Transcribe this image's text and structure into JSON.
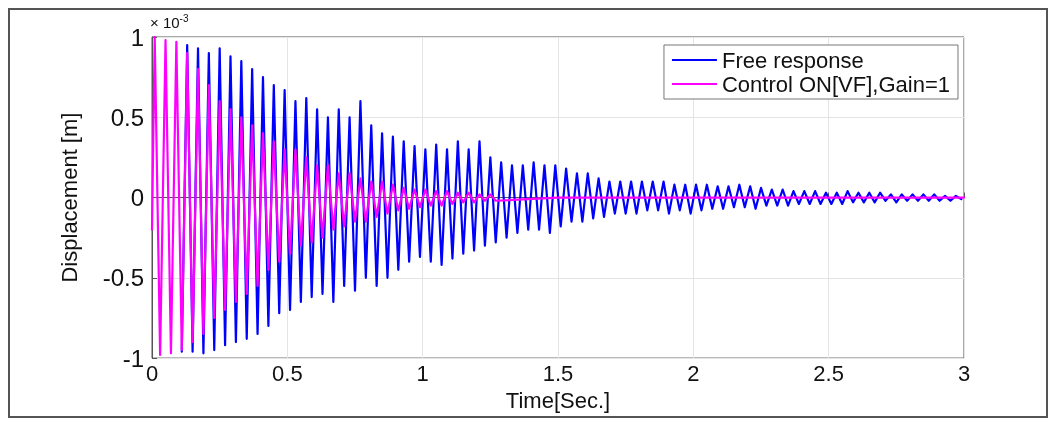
{
  "chart_data": {
    "type": "line",
    "xlabel": "Time[Sec.]",
    "ylabel": "Displacement [m]",
    "annotations": [
      "× 10$^{-3}$"
    ],
    "xlim": [
      0,
      3
    ],
    "ylim": [
      -1,
      1
    ],
    "xticks": [
      0,
      0.5,
      1,
      1.5,
      2,
      2.5,
      3
    ],
    "yticks": [
      -1,
      -0.5,
      0,
      0.5,
      1
    ],
    "grid": true,
    "legend": "top right",
    "marker": "none",
    "line_style": "solid",
    "series": [
      {
        "name": "Free response",
        "color": "#0000ff",
        "x": [
          0.11,
          0.13,
          0.15,
          0.17,
          0.19,
          0.21,
          0.23,
          0.25,
          0.27,
          0.29,
          0.31,
          0.33,
          0.35,
          0.37,
          0.39,
          0.41,
          0.43,
          0.45,
          0.47,
          0.49,
          0.51,
          0.53,
          0.55,
          0.57,
          0.59,
          0.61,
          0.63,
          0.65,
          0.67,
          0.69,
          0.71,
          0.73,
          0.75,
          0.77,
          0.79,
          0.81,
          0.83,
          0.85,
          0.87,
          0.89,
          0.91,
          0.93,
          0.95,
          0.97,
          0.99,
          1.01,
          1.03,
          1.05,
          1.07,
          1.09,
          1.11,
          1.13,
          1.15,
          1.17,
          1.19,
          1.21,
          1.23,
          1.25,
          1.27,
          1.29,
          1.31,
          1.33,
          1.35,
          1.37,
          1.39,
          1.41,
          1.43,
          1.45,
          1.47,
          1.49,
          1.51,
          1.53,
          1.55,
          1.57,
          1.59,
          1.61,
          1.63,
          1.65,
          1.67,
          1.69,
          1.71,
          1.73,
          1.75,
          1.77,
          1.79,
          1.81,
          1.83,
          1.85,
          1.87,
          1.89,
          1.91,
          1.93,
          1.95,
          1.97,
          1.99,
          2.01,
          2.03,
          2.05,
          2.07,
          2.09,
          2.11,
          2.13,
          2.15,
          2.17,
          2.19,
          2.21,
          2.23,
          2.25,
          2.27,
          2.29,
          2.31,
          2.33,
          2.35,
          2.37,
          2.39,
          2.41,
          2.43,
          2.45,
          2.47,
          2.49,
          2.51,
          2.53,
          2.55,
          2.57,
          2.59,
          2.61,
          2.63,
          2.65,
          2.67,
          2.69,
          2.71,
          2.73,
          2.75,
          2.77,
          2.79,
          2.81,
          2.83,
          2.85,
          2.87,
          2.89,
          2.91,
          2.93,
          2.95,
          2.97,
          2.99
        ],
        "values": [
          -0.96,
          0.95,
          -0.96,
          0.93,
          -0.97,
          0.9,
          -0.95,
          0.93,
          -0.92,
          0.88,
          -0.9,
          0.85,
          -0.88,
          0.8,
          -0.85,
          0.75,
          -0.8,
          0.7,
          -0.72,
          0.67,
          -0.7,
          0.6,
          -0.65,
          0.62,
          -0.62,
          0.55,
          -0.6,
          0.5,
          -0.65,
          0.55,
          -0.55,
          0.5,
          -0.58,
          0.6,
          -0.5,
          0.45,
          -0.55,
          0.4,
          -0.5,
          0.38,
          -0.45,
          0.35,
          -0.4,
          0.32,
          -0.37,
          0.3,
          -0.4,
          0.33,
          -0.42,
          0.3,
          -0.38,
          0.35,
          -0.35,
          0.3,
          -0.33,
          0.35,
          -0.3,
          0.25,
          -0.28,
          0.22,
          -0.25,
          0.2,
          -0.22,
          0.2,
          -0.2,
          0.22,
          -0.2,
          0.2,
          -0.22,
          0.2,
          -0.18,
          0.18,
          -0.15,
          0.15,
          -0.15,
          0.15,
          -0.13,
          0.12,
          -0.12,
          0.1,
          -0.1,
          0.1,
          -0.1,
          0.1,
          -0.1,
          0.1,
          -0.08,
          0.1,
          -0.08,
          0.1,
          -0.1,
          0.08,
          -0.08,
          0.08,
          -0.1,
          0.08,
          -0.08,
          0.08,
          -0.07,
          0.07,
          -0.07,
          0.07,
          -0.06,
          0.08,
          -0.06,
          0.07,
          -0.07,
          0.06,
          -0.05,
          0.05,
          -0.05,
          0.05,
          -0.05,
          0.04,
          -0.04,
          0.04,
          -0.04,
          0.04,
          -0.04,
          0.03,
          -0.04,
          0.03,
          -0.04,
          0.04,
          -0.03,
          0.03,
          -0.03,
          0.03,
          -0.03,
          0.03,
          -0.02,
          0.02,
          -0.03,
          0.02,
          -0.02,
          0.02,
          -0.02,
          0.02,
          -0.02,
          0.02,
          -0.02,
          0.01,
          -0.02,
          0.01,
          -0.01
        ]
      },
      {
        "name": "Control ON[VF],Gain=1",
        "color": "#ff00ff",
        "x": [
          0,
          0.01,
          0.03,
          0.05,
          0.07,
          0.09,
          0.11,
          0.13,
          0.15,
          0.17,
          0.19,
          0.21,
          0.23,
          0.25,
          0.27,
          0.29,
          0.31,
          0.33,
          0.35,
          0.37,
          0.39,
          0.41,
          0.43,
          0.45,
          0.47,
          0.49,
          0.51,
          0.53,
          0.55,
          0.57,
          0.59,
          0.61,
          0.63,
          0.65,
          0.67,
          0.69,
          0.71,
          0.73,
          0.75,
          0.77,
          0.79,
          0.81,
          0.83,
          0.85,
          0.87,
          0.89,
          0.91,
          0.93,
          0.95,
          0.97,
          0.99,
          1.01,
          1.03,
          1.05,
          1.07,
          1.09,
          1.11,
          1.13,
          1.15,
          1.17,
          1.19,
          1.21,
          1.23,
          1.25,
          1.27,
          1.5,
          3
        ],
        "values": [
          -0.2,
          1,
          -0.98,
          0.98,
          -0.97,
          0.97,
          -0.95,
          0.9,
          -0.9,
          0.8,
          -0.85,
          0.7,
          -0.75,
          0.6,
          -0.7,
          0.55,
          -0.65,
          0.5,
          -0.6,
          0.45,
          -0.55,
          0.4,
          -0.45,
          0.35,
          -0.4,
          0.3,
          -0.35,
          0.3,
          -0.3,
          0.25,
          -0.28,
          0.2,
          -0.25,
          0.2,
          -0.2,
          0.15,
          -0.18,
          0.15,
          -0.15,
          0.12,
          -0.15,
          0.1,
          -0.12,
          0.1,
          -0.1,
          0.08,
          -0.08,
          0.06,
          -0.07,
          0.05,
          -0.06,
          0.05,
          -0.05,
          0.04,
          -0.05,
          0.04,
          -0.04,
          0.03,
          -0.03,
          0.03,
          -0.03,
          0.02,
          -0.02,
          0.02,
          -0.02,
          0,
          0
        ]
      }
    ]
  }
}
